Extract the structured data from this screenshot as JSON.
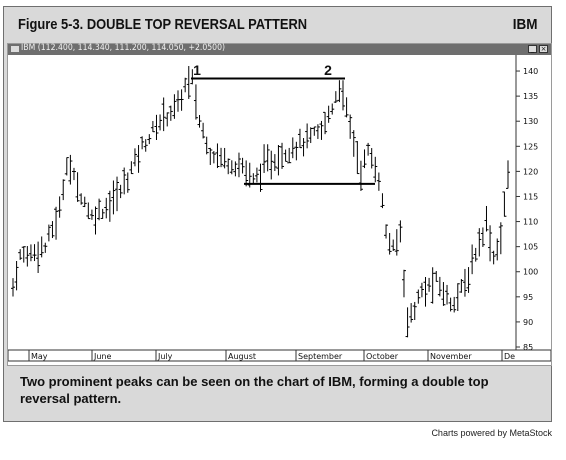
{
  "figure": {
    "title": "Figure 5-3. DOUBLE TOP REVERSAL PATTERN",
    "symbol": "IBM",
    "caption": "Two prominent peaks can be seen on the chart of IBM, forming a double top reversal pattern.",
    "credit": "Charts powered by MetaStock"
  },
  "window": {
    "title": "IBM (112.400, 114.340, 111.200, 114.050, +2.0500)",
    "buttons": [
      "minimize-icon",
      "close-icon"
    ]
  },
  "chart_data": {
    "type": "bar",
    "style": "ohlc",
    "ylim": [
      85,
      142
    ],
    "yticks": [
      85,
      90,
      95,
      100,
      105,
      110,
      115,
      120,
      125,
      130,
      135,
      140
    ],
    "months": [
      "May",
      "June",
      "July",
      "August",
      "September",
      "October",
      "November",
      "De"
    ],
    "grid": false,
    "annotations": {
      "peak_labels": [
        {
          "label": "1",
          "date": "early July",
          "price": 140
        },
        {
          "label": "2",
          "date": "mid September",
          "price": 140
        }
      ],
      "resistance": {
        "price": 138.5,
        "from": "peak 1",
        "to": "peak 2"
      },
      "support": {
        "price": 117.5,
        "from": "August",
        "to": "late September"
      }
    },
    "series": [
      {
        "anchors": [
          [
            0,
            97
          ],
          [
            2,
            103
          ],
          [
            6,
            104
          ],
          [
            9,
            105
          ],
          [
            13,
            112
          ],
          [
            15,
            122
          ],
          [
            18,
            117
          ],
          [
            22,
            111
          ],
          [
            26,
            113
          ],
          [
            30,
            116
          ],
          [
            36,
            125
          ],
          [
            42,
            131
          ],
          [
            46,
            133
          ],
          [
            48,
            137
          ],
          [
            50,
            138
          ],
          [
            52,
            130
          ],
          [
            55,
            124
          ],
          [
            60,
            122
          ],
          [
            64,
            121
          ],
          [
            67,
            118
          ],
          [
            70,
            121
          ],
          [
            74,
            123
          ],
          [
            78,
            125
          ],
          [
            82,
            126
          ],
          [
            86,
            128
          ],
          [
            89,
            133
          ],
          [
            91,
            137
          ],
          [
            93,
            132
          ],
          [
            95,
            126
          ],
          [
            97,
            120
          ],
          [
            99,
            124
          ],
          [
            102,
            119
          ],
          [
            104,
            108
          ],
          [
            106,
            104
          ],
          [
            108,
            108
          ],
          [
            110,
            90
          ],
          [
            114,
            96
          ],
          [
            118,
            98
          ],
          [
            122,
            94
          ],
          [
            126,
            97
          ],
          [
            129,
            104
          ],
          [
            132,
            110
          ],
          [
            134,
            103
          ],
          [
            136,
            107
          ],
          [
            138,
            119
          ]
        ],
        "wick": 4
      }
    ]
  }
}
